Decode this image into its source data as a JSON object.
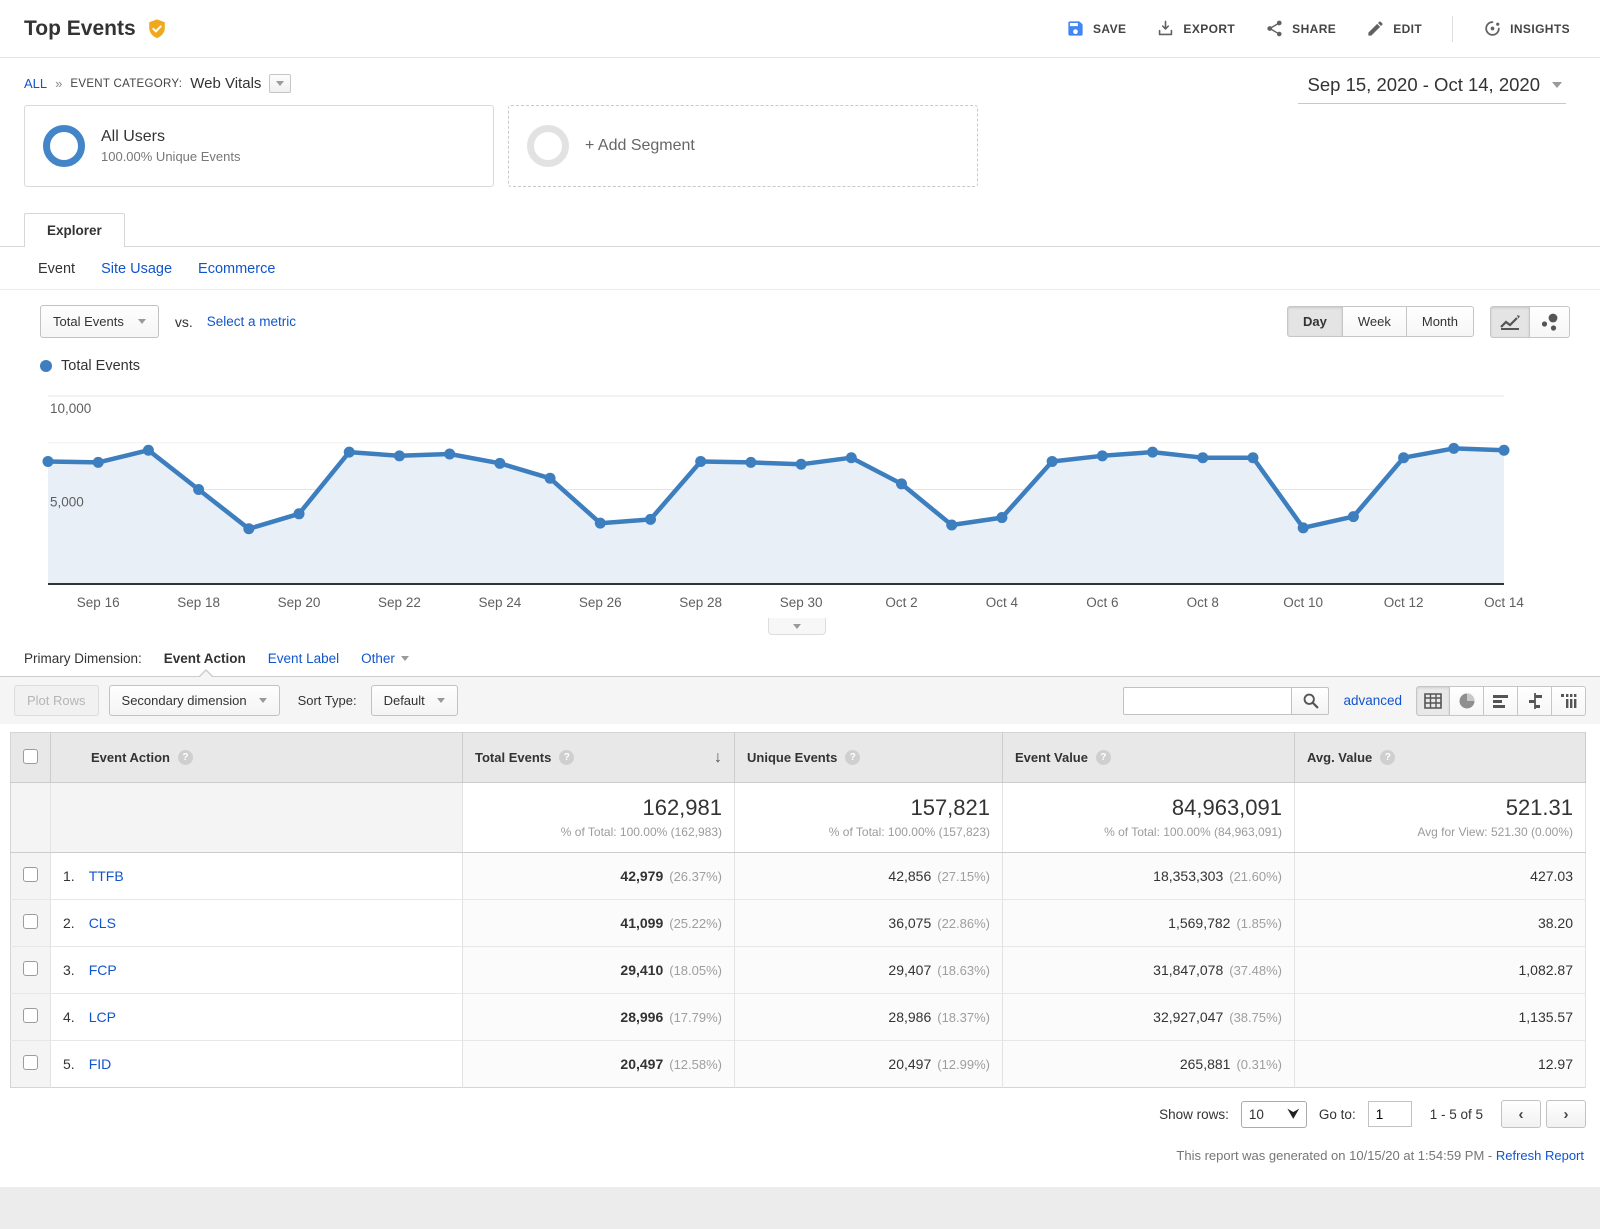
{
  "header": {
    "title": "Top Events",
    "toolbar": [
      {
        "label": "SAVE",
        "icon": "save-icon"
      },
      {
        "label": "EXPORT",
        "icon": "export-icon"
      },
      {
        "label": "SHARE",
        "icon": "share-icon"
      },
      {
        "label": "EDIT",
        "icon": "edit-icon"
      },
      {
        "label": "INSIGHTS",
        "icon": "insights-icon"
      }
    ]
  },
  "breadcrumb": {
    "all": "ALL",
    "separator": "»",
    "category_label": "EVENT CATEGORY:",
    "category_value": "Web Vitals"
  },
  "date_range": "Sep 15, 2020 - Oct 14, 2020",
  "segments": {
    "all_users": {
      "title": "All Users",
      "subtitle": "100.00% Unique Events"
    },
    "add_segment": "+ Add Segment"
  },
  "tabs": {
    "explorer": "Explorer",
    "subtabs": [
      {
        "label": "Event",
        "active": true
      },
      {
        "label": "Site Usage",
        "active": false
      },
      {
        "label": "Ecommerce",
        "active": false
      }
    ]
  },
  "controls": {
    "metric_dropdown": "Total Events",
    "vs": "vs.",
    "select_metric": "Select a metric",
    "granularity": [
      {
        "label": "Day",
        "active": true
      },
      {
        "label": "Week",
        "active": false
      },
      {
        "label": "Month",
        "active": false
      }
    ]
  },
  "legend": {
    "label": "Total Events"
  },
  "chart_data": {
    "type": "line",
    "title": "Total Events by day",
    "x": [
      "Sep 15",
      "Sep 16",
      "Sep 17",
      "Sep 18",
      "Sep 19",
      "Sep 20",
      "Sep 21",
      "Sep 22",
      "Sep 23",
      "Sep 24",
      "Sep 25",
      "Sep 26",
      "Sep 27",
      "Sep 28",
      "Sep 29",
      "Sep 30",
      "Oct 1",
      "Oct 2",
      "Oct 3",
      "Oct 4",
      "Oct 5",
      "Oct 6",
      "Oct 7",
      "Oct 8",
      "Oct 9",
      "Oct 10",
      "Oct 11",
      "Oct 12",
      "Oct 13",
      "Oct 14"
    ],
    "series": [
      {
        "name": "Total Events",
        "color": "#3d7ebf",
        "values": [
          6500,
          6450,
          7100,
          5000,
          2900,
          3700,
          7000,
          6800,
          6900,
          6400,
          5600,
          3200,
          3400,
          6500,
          6450,
          6350,
          6700,
          5300,
          3100,
          3500,
          6500,
          6800,
          7000,
          6700,
          6700,
          2950,
          3550,
          6700,
          7200,
          7100
        ]
      }
    ],
    "ylim": [
      0,
      10000
    ],
    "gridlines": [
      2500,
      5000,
      7500,
      10000
    ],
    "yticks_labeled": [
      {
        "value": 10000,
        "label": "10,000"
      },
      {
        "value": 5000,
        "label": "5,000"
      }
    ],
    "x_tick_labels": [
      "Sep 16",
      "Sep 18",
      "Sep 20",
      "Sep 22",
      "Sep 24",
      "Sep 26",
      "Sep 28",
      "Sep 30",
      "Oct 2",
      "Oct 4",
      "Oct 6",
      "Oct 8",
      "Oct 10",
      "Oct 12",
      "Oct 14"
    ],
    "area_fill": "#e9eff7",
    "legend_position": "top-left",
    "grid": true
  },
  "primary_dimension": {
    "label": "Primary Dimension:",
    "options": [
      {
        "label": "Event Action",
        "active": true
      },
      {
        "label": "Event Label",
        "active": false
      },
      {
        "label": "Other",
        "active": false
      }
    ]
  },
  "table_toolbar": {
    "plot_rows": "Plot Rows",
    "secondary_dimension": "Secondary dimension",
    "sort_type_label": "Sort Type:",
    "sort_type_value": "Default",
    "advanced": "advanced"
  },
  "table": {
    "columns": [
      "Event Action",
      "Total Events",
      "Unique Events",
      "Event Value",
      "Avg. Value"
    ],
    "summary": {
      "total_events": "162,981",
      "total_events_sub": "% of Total: 100.00% (162,983)",
      "unique_events": "157,821",
      "unique_events_sub": "% of Total: 100.00% (157,823)",
      "event_value": "84,963,091",
      "event_value_sub": "% of Total: 100.00% (84,963,091)",
      "avg_value": "521.31",
      "avg_value_sub": "Avg for View: 521.30 (0.00%)"
    },
    "rows": [
      {
        "rank": "1.",
        "name": "TTFB",
        "total_events": "42,979",
        "total_events_pct": "(26.37%)",
        "unique_events": "42,856",
        "unique_events_pct": "(27.15%)",
        "event_value": "18,353,303",
        "event_value_pct": "(21.60%)",
        "avg_value": "427.03"
      },
      {
        "rank": "2.",
        "name": "CLS",
        "total_events": "41,099",
        "total_events_pct": "(25.22%)",
        "unique_events": "36,075",
        "unique_events_pct": "(22.86%)",
        "event_value": "1,569,782",
        "event_value_pct": "(1.85%)",
        "avg_value": "38.20"
      },
      {
        "rank": "3.",
        "name": "FCP",
        "total_events": "29,410",
        "total_events_pct": "(18.05%)",
        "unique_events": "29,407",
        "unique_events_pct": "(18.63%)",
        "event_value": "31,847,078",
        "event_value_pct": "(37.48%)",
        "avg_value": "1,082.87"
      },
      {
        "rank": "4.",
        "name": "LCP",
        "total_events": "28,996",
        "total_events_pct": "(17.79%)",
        "unique_events": "28,986",
        "unique_events_pct": "(18.37%)",
        "event_value": "32,927,047",
        "event_value_pct": "(38.75%)",
        "avg_value": "1,135.57"
      },
      {
        "rank": "5.",
        "name": "FID",
        "total_events": "20,497",
        "total_events_pct": "(12.58%)",
        "unique_events": "20,497",
        "unique_events_pct": "(12.99%)",
        "event_value": "265,881",
        "event_value_pct": "(0.31%)",
        "avg_value": "12.97"
      }
    ]
  },
  "footer": {
    "show_rows_label": "Show rows:",
    "show_rows_value": "10",
    "goto_label": "Go to:",
    "goto_value": "1",
    "range": "1 - 5 of 5"
  },
  "generated": {
    "text": "This report was generated on 10/15/20 at 1:54:59 PM - ",
    "link": "Refresh Report"
  },
  "colors": {
    "chart_line": "#3d7ebf",
    "chart_area": "#e9eff7",
    "link_blue": "#1155cc",
    "badge_gold": "#f0a81e"
  }
}
